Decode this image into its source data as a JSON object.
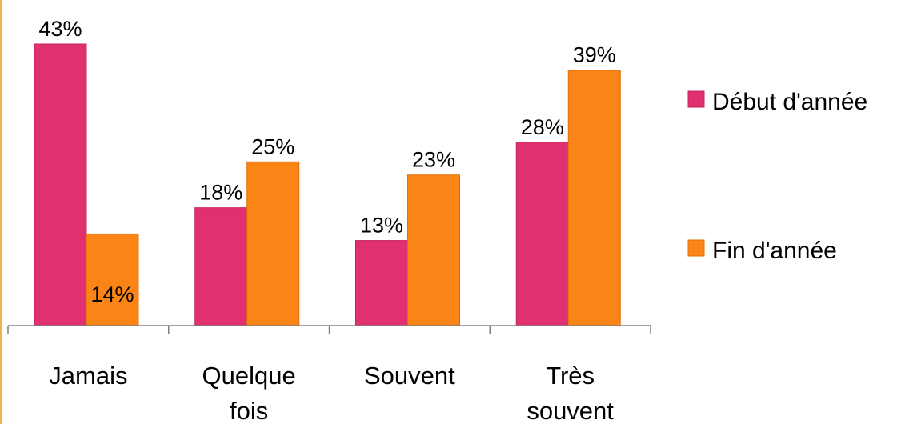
{
  "chart_data": {
    "type": "bar",
    "categories": [
      [
        "Jamais"
      ],
      [
        "Quelque",
        "fois"
      ],
      [
        "Souvent"
      ],
      [
        "Très",
        "souvent"
      ]
    ],
    "series": [
      {
        "name": "Début d'année",
        "values": [
          43,
          18,
          13,
          28
        ],
        "labels": [
          "43%",
          "18%",
          "13%",
          "28%"
        ],
        "color": "#e0306f",
        "edge": "#c5245c"
      },
      {
        "name": "Fin d'année",
        "values": [
          14,
          25,
          23,
          39
        ],
        "labels": [
          "14%",
          "25%",
          "23%",
          "39%"
        ],
        "color": "#fb8416",
        "edge": "#e06f0b"
      }
    ],
    "title": "",
    "xlabel": "",
    "ylabel": "",
    "ylim": [
      0,
      43
    ],
    "grid": false,
    "legend": "right"
  }
}
